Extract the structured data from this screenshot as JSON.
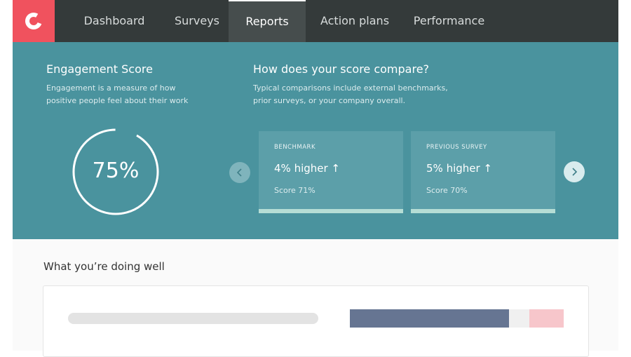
{
  "nav": {
    "items": [
      "Dashboard",
      "Surveys",
      "Reports",
      "Action plans",
      "Performance"
    ],
    "active": "Reports"
  },
  "engagement": {
    "title": "Engagement Score",
    "description": "Engagement is a measure of how positive people feel about their work",
    "score": "75%"
  },
  "comparison": {
    "title": "How does your score compare?",
    "description": "Typical comparisons include external benchmarks, prior surveys, or your company overall.",
    "cards": [
      {
        "label": "BENCHMARK",
        "headline": "4% higher ↑",
        "detail": "Score 71%"
      },
      {
        "label": "PREVIOUS SURVEY",
        "headline": "5% higher ↑",
        "detail": "Score 70%"
      }
    ]
  },
  "section": {
    "title": "What you’re doing well"
  }
}
